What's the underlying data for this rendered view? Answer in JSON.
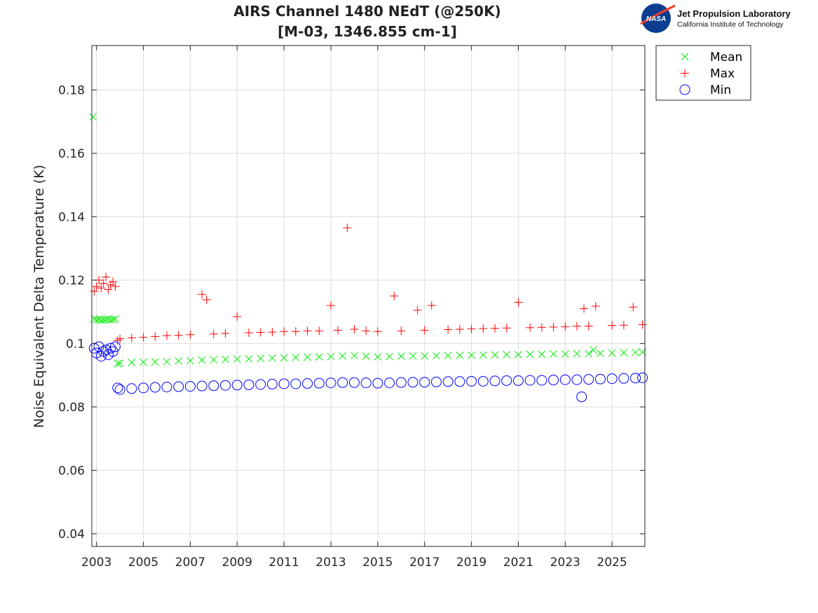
{
  "header": {
    "title_line1": "AIRS Channel 1480 NEdT (@250K)",
    "title_line2": "[M-03, 1346.855 cm-1]"
  },
  "logo": {
    "badge_text": "NASA",
    "org_name": "Jet Propulsion Laboratory",
    "org_sub": "California Institute of Technology"
  },
  "chart_data": {
    "type": "scatter",
    "ylabel": "Noise Equivalent Delta Temperature (K)",
    "xlabel": "",
    "xlim": [
      2002.8,
      2026.4
    ],
    "ylim": [
      0.036,
      0.194
    ],
    "xticks": [
      2003,
      2005,
      2007,
      2009,
      2011,
      2013,
      2015,
      2017,
      2019,
      2021,
      2023,
      2025
    ],
    "xtick_labels": [
      "2003",
      "2005",
      "2007",
      "2009",
      "2011",
      "2013",
      "2015",
      "2017",
      "2019",
      "2021",
      "2023",
      "2025"
    ],
    "yticks": [
      0.04,
      0.06,
      0.08,
      0.1,
      0.12,
      0.14,
      0.16,
      0.18
    ],
    "ytick_labels": [
      "0.04",
      "0.06",
      "0.08",
      "0.1",
      "0.12",
      "0.14",
      "0.16",
      "0.18"
    ],
    "grid": true,
    "legend_position": "outside-top-right",
    "series": [
      {
        "name": "Mean",
        "marker": "x",
        "color": "#00ee00",
        "x": [
          2002.9,
          2003.0,
          2003.1,
          2003.2,
          2003.3,
          2003.4,
          2003.5,
          2003.6,
          2003.7,
          2003.8,
          2003.9,
          2004.0,
          2004.5,
          2005.0,
          2005.5,
          2006.0,
          2006.5,
          2007.0,
          2007.5,
          2008.0,
          2008.5,
          2009.0,
          2009.5,
          2010.0,
          2010.5,
          2011.0,
          2011.5,
          2012.0,
          2012.5,
          2013.0,
          2013.5,
          2014.0,
          2014.5,
          2015.0,
          2015.5,
          2016.0,
          2016.5,
          2017.0,
          2017.5,
          2018.0,
          2018.5,
          2019.0,
          2019.5,
          2020.0,
          2020.5,
          2021.0,
          2021.5,
          2022.0,
          2022.5,
          2023.0,
          2023.5,
          2024.0,
          2024.2,
          2024.5,
          2025.0,
          2025.5,
          2026.0,
          2026.3,
          2002.85
        ],
        "y": [
          0.1078,
          0.1075,
          0.1076,
          0.1074,
          0.1075,
          0.1076,
          0.1077,
          0.1075,
          0.1076,
          0.1077,
          0.0937,
          0.0938,
          0.094,
          0.0941,
          0.0942,
          0.0943,
          0.0945,
          0.0946,
          0.0948,
          0.0949,
          0.095,
          0.0951,
          0.0952,
          0.0953,
          0.0954,
          0.0955,
          0.0956,
          0.0957,
          0.0958,
          0.0959,
          0.0961,
          0.0962,
          0.096,
          0.0958,
          0.0959,
          0.096,
          0.0961,
          0.0961,
          0.0962,
          0.0962,
          0.0963,
          0.0963,
          0.0964,
          0.0964,
          0.0965,
          0.0965,
          0.0966,
          0.0966,
          0.0967,
          0.0967,
          0.0968,
          0.0968,
          0.098,
          0.0969,
          0.097,
          0.0971,
          0.0972,
          0.0973,
          0.1715
        ]
      },
      {
        "name": "Max",
        "marker": "+",
        "color": "#ff0000",
        "x": [
          2002.9,
          2003.0,
          2003.1,
          2003.2,
          2003.3,
          2003.4,
          2003.5,
          2003.6,
          2003.7,
          2003.8,
          2003.9,
          2004.0,
          2004.5,
          2005.0,
          2005.5,
          2006.0,
          2006.5,
          2007.0,
          2007.5,
          2007.7,
          2008.0,
          2008.5,
          2009.0,
          2009.5,
          2010.0,
          2010.5,
          2011.0,
          2011.5,
          2012.0,
          2012.5,
          2013.0,
          2013.3,
          2013.7,
          2014.0,
          2014.5,
          2015.0,
          2015.7,
          2016.0,
          2016.7,
          2017.0,
          2017.3,
          2018.0,
          2018.5,
          2019.0,
          2019.5,
          2020.0,
          2020.5,
          2021.0,
          2021.5,
          2022.0,
          2022.5,
          2023.0,
          2023.5,
          2023.8,
          2024.0,
          2024.3,
          2025.0,
          2025.5,
          2025.9,
          2026.3
        ],
        "y": [
          0.1165,
          0.118,
          0.12,
          0.1175,
          0.119,
          0.121,
          0.117,
          0.1185,
          0.1195,
          0.118,
          0.101,
          0.1015,
          0.1018,
          0.102,
          0.1022,
          0.1025,
          0.1026,
          0.1028,
          0.1155,
          0.1138,
          0.103,
          0.1032,
          0.1085,
          0.1034,
          0.1035,
          0.1036,
          0.1038,
          0.1038,
          0.104,
          0.104,
          0.112,
          0.1042,
          0.1365,
          0.1045,
          0.104,
          0.1038,
          0.115,
          0.104,
          0.1105,
          0.1042,
          0.112,
          0.1044,
          0.1045,
          0.1046,
          0.1047,
          0.1048,
          0.1049,
          0.113,
          0.105,
          0.1051,
          0.1052,
          0.1053,
          0.1055,
          0.111,
          0.1055,
          0.1118,
          0.1057,
          0.1058,
          0.1115,
          0.106
        ]
      },
      {
        "name": "Min",
        "marker": "o",
        "color": "#0000ff",
        "x": [
          2002.9,
          2003.0,
          2003.1,
          2003.2,
          2003.3,
          2003.4,
          2003.5,
          2003.6,
          2003.7,
          2003.8,
          2003.9,
          2004.0,
          2004.5,
          2005.0,
          2005.5,
          2006.0,
          2006.5,
          2007.0,
          2007.5,
          2008.0,
          2008.5,
          2009.0,
          2009.5,
          2010.0,
          2010.5,
          2011.0,
          2011.5,
          2012.0,
          2012.5,
          2013.0,
          2013.5,
          2014.0,
          2014.5,
          2015.0,
          2015.5,
          2016.0,
          2016.5,
          2017.0,
          2017.5,
          2018.0,
          2018.5,
          2019.0,
          2019.5,
          2020.0,
          2020.5,
          2021.0,
          2021.5,
          2022.0,
          2022.5,
          2023.0,
          2023.5,
          2023.7,
          2024.0,
          2024.5,
          2025.0,
          2025.5,
          2026.0,
          2026.3
        ],
        "y": [
          0.0985,
          0.097,
          0.099,
          0.096,
          0.0975,
          0.098,
          0.0965,
          0.0985,
          0.0975,
          0.099,
          0.086,
          0.0855,
          0.0858,
          0.086,
          0.0862,
          0.0863,
          0.0864,
          0.0865,
          0.0866,
          0.0867,
          0.0868,
          0.0869,
          0.087,
          0.0871,
          0.0872,
          0.0873,
          0.0873,
          0.0874,
          0.0875,
          0.0876,
          0.0877,
          0.0877,
          0.0876,
          0.0875,
          0.0876,
          0.0877,
          0.0878,
          0.0878,
          0.0879,
          0.088,
          0.088,
          0.0881,
          0.0881,
          0.0882,
          0.0883,
          0.0883,
          0.0884,
          0.0884,
          0.0885,
          0.0886,
          0.0886,
          0.0832,
          0.0887,
          0.0888,
          0.0889,
          0.089,
          0.0891,
          0.0892
        ]
      }
    ]
  }
}
